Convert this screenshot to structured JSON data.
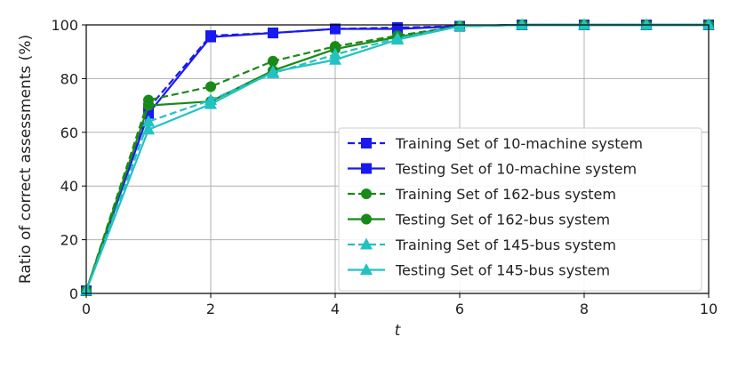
{
  "chart_data": {
    "type": "line",
    "xlabel": "t",
    "ylabel": "Ratio of correct assessments (%)",
    "xlim": [
      0,
      10
    ],
    "ylim": [
      0,
      100
    ],
    "xticks": [
      "0",
      "2",
      "4",
      "6",
      "8",
      "10"
    ],
    "yticks": [
      "0",
      "20",
      "40",
      "60",
      "80",
      "100"
    ],
    "grid": true,
    "legend_position": "lower-right",
    "x": [
      0,
      1,
      2,
      3,
      4,
      5,
      6,
      7,
      8,
      9,
      10
    ],
    "series": [
      {
        "name": "Training Set of 10-machine system",
        "color": "#1a1af0",
        "linestyle": "dashed",
        "marker": "square",
        "values": [
          1,
          69,
          96,
          97,
          98.5,
          99,
          99.5,
          100,
          100,
          100,
          100
        ]
      },
      {
        "name": "Testing Set of 10-machine system",
        "color": "#1a1af0",
        "linestyle": "solid",
        "marker": "square",
        "values": [
          1,
          67,
          95.5,
          97,
          98.5,
          98.5,
          99.5,
          100,
          100,
          100,
          100
        ]
      },
      {
        "name": "Training Set of 162-bus system",
        "color": "#198a19",
        "linestyle": "dashed",
        "marker": "circle",
        "values": [
          1,
          72,
          77,
          86.5,
          92,
          96,
          99.5,
          100,
          100,
          100,
          100
        ]
      },
      {
        "name": "Testing Set of 162-bus system",
        "color": "#198a19",
        "linestyle": "solid",
        "marker": "circle",
        "values": [
          1,
          70,
          71.5,
          83,
          91,
          95.5,
          99.5,
          100,
          100,
          100,
          100
        ]
      },
      {
        "name": "Training Set of 145-bus system",
        "color": "#22c2c2",
        "linestyle": "dashed",
        "marker": "triangle",
        "values": [
          1,
          64,
          72,
          82,
          89,
          95,
          99.5,
          100,
          100,
          100,
          100
        ]
      },
      {
        "name": "Testing Set of 145-bus system",
        "color": "#22c2c2",
        "linestyle": "solid",
        "marker": "triangle",
        "values": [
          1,
          61,
          70.5,
          82.5,
          87,
          94.5,
          99.5,
          100,
          100,
          100,
          100
        ]
      }
    ]
  }
}
